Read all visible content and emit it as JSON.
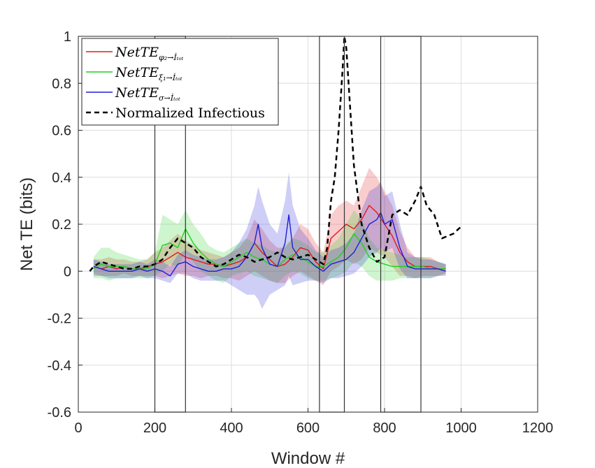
{
  "chart_data": {
    "type": "line",
    "title": "",
    "xlabel": "Window #",
    "ylabel": "Net TE (bits)",
    "xlim": [
      0,
      1200
    ],
    "ylim": [
      -0.6,
      1
    ],
    "xticks": [
      0,
      200,
      400,
      600,
      800,
      1000,
      1200
    ],
    "yticks": [
      -0.6,
      -0.4,
      -0.2,
      0,
      0.2,
      0.4,
      0.6,
      0.8,
      1
    ],
    "xtick_labels": [
      "0",
      "200",
      "400",
      "600",
      "800",
      "1000",
      "1200"
    ],
    "ytick_labels": [
      "-0.6",
      "-0.4",
      "-0.2",
      "0",
      "0.2",
      "0.4",
      "0.6",
      "0.8",
      "1"
    ],
    "grid": true,
    "legend_position": "top-left",
    "series": [
      {
        "name": "NetTE_{φ2→İtot}",
        "legend": {
          "base": "NetTE",
          "sub": "φ₂→İₜₒₜ"
        },
        "color": "#e31a1c",
        "style": "solid",
        "x": [
          40,
          60,
          80,
          100,
          120,
          140,
          160,
          180,
          200,
          220,
          240,
          260,
          280,
          300,
          320,
          340,
          360,
          380,
          400,
          420,
          440,
          460,
          480,
          500,
          520,
          540,
          560,
          580,
          600,
          620,
          640,
          660,
          680,
          700,
          720,
          740,
          760,
          780,
          800,
          820,
          840,
          860,
          880,
          900,
          920,
          940,
          960
        ],
        "y": [
          0.02,
          0.01,
          0.02,
          0.01,
          0.02,
          0.01,
          0.01,
          0.02,
          0.03,
          0.04,
          0.06,
          0.08,
          0.06,
          0.05,
          0.04,
          0.03,
          0.03,
          0.02,
          0.03,
          0.04,
          0.06,
          0.12,
          0.08,
          0.05,
          0.02,
          0.03,
          0.06,
          0.1,
          0.09,
          0.04,
          0.01,
          0.14,
          0.17,
          0.2,
          0.18,
          0.22,
          0.28,
          0.25,
          0.2,
          0.15,
          0.08,
          0.04,
          0.02,
          0.02,
          0.02,
          0.01,
          0.01
        ],
        "lower": [
          -0.01,
          -0.02,
          -0.02,
          -0.02,
          -0.01,
          -0.02,
          -0.02,
          -0.02,
          -0.02,
          -0.03,
          -0.02,
          -0.01,
          -0.02,
          -0.02,
          -0.03,
          -0.02,
          -0.02,
          -0.03,
          -0.03,
          -0.04,
          -0.02,
          0.0,
          -0.02,
          -0.04,
          -0.05,
          -0.05,
          -0.02,
          0.0,
          -0.02,
          -0.04,
          -0.06,
          0.0,
          0.02,
          0.05,
          0.03,
          0.05,
          0.1,
          0.08,
          0.06,
          0.02,
          -0.02,
          -0.02,
          -0.03,
          -0.02,
          -0.02,
          -0.02,
          -0.01
        ],
        "upper": [
          0.05,
          0.05,
          0.06,
          0.05,
          0.05,
          0.04,
          0.04,
          0.05,
          0.08,
          0.1,
          0.13,
          0.16,
          0.13,
          0.11,
          0.09,
          0.08,
          0.07,
          0.06,
          0.08,
          0.1,
          0.14,
          0.22,
          0.18,
          0.13,
          0.1,
          0.1,
          0.14,
          0.2,
          0.18,
          0.12,
          0.08,
          0.24,
          0.28,
          0.3,
          0.28,
          0.36,
          0.44,
          0.4,
          0.34,
          0.28,
          0.17,
          0.1,
          0.06,
          0.06,
          0.06,
          0.04,
          0.03
        ]
      },
      {
        "name": "NetTE_{ξ1→İtot}",
        "legend": {
          "base": "NetTE",
          "sub": "ξ₁→İₜₒₜ"
        },
        "color": "#1fd11f",
        "style": "solid",
        "x": [
          40,
          60,
          80,
          100,
          120,
          140,
          160,
          180,
          200,
          220,
          240,
          260,
          280,
          300,
          320,
          340,
          360,
          380,
          400,
          420,
          440,
          460,
          480,
          500,
          520,
          540,
          560,
          580,
          600,
          620,
          640,
          660,
          680,
          700,
          720,
          740,
          760,
          780,
          800,
          820,
          840,
          860,
          880,
          900,
          920,
          940,
          960
        ],
        "y": [
          0.01,
          0.03,
          0.02,
          0.02,
          0.02,
          0.01,
          0.01,
          0.01,
          0.03,
          0.11,
          0.12,
          0.1,
          0.18,
          0.12,
          0.08,
          0.05,
          0.03,
          0.02,
          0.04,
          0.06,
          0.08,
          0.06,
          0.05,
          0.03,
          0.02,
          0.05,
          0.07,
          0.06,
          0.04,
          0.02,
          0.02,
          0.04,
          0.06,
          0.1,
          0.16,
          0.12,
          0.06,
          0.04,
          0.03,
          0.02,
          0.02,
          0.02,
          0.02,
          0.02,
          0.01,
          0.01,
          0.01
        ],
        "lower": [
          -0.03,
          -0.03,
          -0.04,
          -0.03,
          -0.03,
          -0.03,
          -0.03,
          -0.03,
          -0.02,
          0.0,
          0.03,
          0.02,
          0.08,
          0.04,
          0.0,
          -0.02,
          -0.04,
          -0.05,
          -0.02,
          -0.01,
          0.0,
          -0.02,
          -0.03,
          -0.04,
          -0.05,
          -0.02,
          0.0,
          -0.01,
          -0.03,
          -0.04,
          -0.04,
          -0.03,
          -0.02,
          0.0,
          0.04,
          0.02,
          -0.02,
          -0.04,
          -0.04,
          -0.04,
          -0.03,
          -0.03,
          -0.03,
          -0.03,
          -0.03,
          -0.02,
          -0.01
        ],
        "upper": [
          0.06,
          0.1,
          0.1,
          0.08,
          0.07,
          0.06,
          0.05,
          0.05,
          0.08,
          0.24,
          0.22,
          0.2,
          0.26,
          0.2,
          0.16,
          0.11,
          0.09,
          0.08,
          0.1,
          0.12,
          0.14,
          0.12,
          0.11,
          0.09,
          0.08,
          0.11,
          0.14,
          0.13,
          0.11,
          0.08,
          0.08,
          0.11,
          0.14,
          0.2,
          0.26,
          0.22,
          0.14,
          0.1,
          0.09,
          0.08,
          0.07,
          0.06,
          0.06,
          0.06,
          0.05,
          0.04,
          0.03
        ]
      },
      {
        "name": "NetTE_{σ→İtot}",
        "legend": {
          "base": "NetTE",
          "sub": "σ→İₜₒₜ"
        },
        "color": "#1f1fd6",
        "style": "solid",
        "x": [
          40,
          60,
          80,
          100,
          120,
          140,
          160,
          180,
          200,
          220,
          240,
          260,
          280,
          300,
          320,
          340,
          360,
          380,
          400,
          420,
          440,
          460,
          470,
          480,
          500,
          520,
          540,
          550,
          560,
          580,
          600,
          620,
          640,
          660,
          680,
          700,
          720,
          740,
          760,
          780,
          790,
          800,
          820,
          840,
          860,
          880,
          900,
          920,
          940,
          960
        ],
        "y": [
          0.02,
          0.01,
          0.0,
          0.0,
          0.0,
          0.0,
          0.01,
          0.0,
          0.01,
          0.0,
          -0.02,
          0.03,
          0.04,
          0.02,
          0.01,
          0.0,
          0.0,
          0.01,
          0.01,
          0.02,
          0.06,
          0.12,
          0.2,
          0.1,
          0.03,
          0.02,
          0.12,
          0.24,
          0.1,
          0.05,
          0.05,
          0.02,
          0.0,
          0.03,
          0.04,
          0.05,
          0.08,
          0.14,
          0.2,
          0.22,
          0.25,
          0.2,
          0.22,
          0.1,
          0.02,
          0.01,
          0.01,
          0.01,
          0.01,
          0.0
        ],
        "lower": [
          -0.02,
          -0.02,
          -0.03,
          -0.03,
          -0.03,
          -0.03,
          -0.02,
          -0.03,
          -0.03,
          -0.04,
          -0.05,
          -0.01,
          -0.01,
          -0.03,
          -0.04,
          -0.04,
          -0.04,
          -0.04,
          -0.06,
          -0.08,
          -0.1,
          -0.1,
          -0.12,
          -0.16,
          -0.1,
          -0.08,
          -0.06,
          -0.02,
          -0.06,
          -0.05,
          -0.04,
          -0.04,
          -0.05,
          -0.03,
          -0.03,
          -0.02,
          -0.01,
          0.02,
          0.06,
          0.08,
          0.1,
          0.08,
          0.1,
          0.01,
          -0.03,
          -0.03,
          -0.03,
          -0.03,
          -0.02,
          -0.02
        ],
        "upper": [
          0.05,
          0.04,
          0.03,
          0.03,
          0.03,
          0.03,
          0.04,
          0.03,
          0.05,
          0.04,
          0.02,
          0.07,
          0.09,
          0.07,
          0.06,
          0.05,
          0.05,
          0.06,
          0.08,
          0.12,
          0.18,
          0.28,
          0.36,
          0.3,
          0.2,
          0.16,
          0.3,
          0.42,
          0.28,
          0.18,
          0.14,
          0.09,
          0.06,
          0.09,
          0.1,
          0.12,
          0.16,
          0.26,
          0.34,
          0.36,
          0.38,
          0.32,
          0.34,
          0.2,
          0.08,
          0.06,
          0.05,
          0.05,
          0.04,
          0.03
        ]
      },
      {
        "name": "Normalized Infectious",
        "legend": {
          "base": "Normalized Infectious",
          "sub": ""
        },
        "color": "#000000",
        "style": "dashed",
        "x": [
          30,
          40,
          60,
          80,
          100,
          120,
          140,
          160,
          180,
          200,
          220,
          240,
          260,
          280,
          300,
          320,
          340,
          360,
          380,
          400,
          420,
          440,
          460,
          480,
          500,
          520,
          540,
          560,
          580,
          600,
          620,
          640,
          650,
          660,
          670,
          680,
          690,
          695,
          700,
          710,
          720,
          740,
          760,
          780,
          800,
          820,
          840,
          860,
          880,
          895,
          910,
          930,
          950,
          980,
          1000
        ],
        "y": [
          0.0,
          0.02,
          0.04,
          0.03,
          0.02,
          0.01,
          0.01,
          0.02,
          0.02,
          0.03,
          0.05,
          0.1,
          0.14,
          0.12,
          0.1,
          0.06,
          0.04,
          0.02,
          0.03,
          0.05,
          0.07,
          0.06,
          0.04,
          0.05,
          0.06,
          0.08,
          0.06,
          0.05,
          0.06,
          0.07,
          0.05,
          0.03,
          0.1,
          0.3,
          0.4,
          0.6,
          0.85,
          1.0,
          0.95,
          0.7,
          0.45,
          0.2,
          0.1,
          0.04,
          0.06,
          0.24,
          0.26,
          0.24,
          0.3,
          0.36,
          0.28,
          0.24,
          0.14,
          0.16,
          0.19
        ]
      }
    ],
    "rectangles": [
      {
        "x": [
          200,
          280
        ],
        "y": [
          -0.6,
          1
        ]
      },
      {
        "x": [
          630,
          695
        ],
        "y": [
          -0.6,
          1
        ]
      },
      {
        "x": [
          790,
          895
        ],
        "y": [
          -0.6,
          1
        ]
      }
    ]
  }
}
